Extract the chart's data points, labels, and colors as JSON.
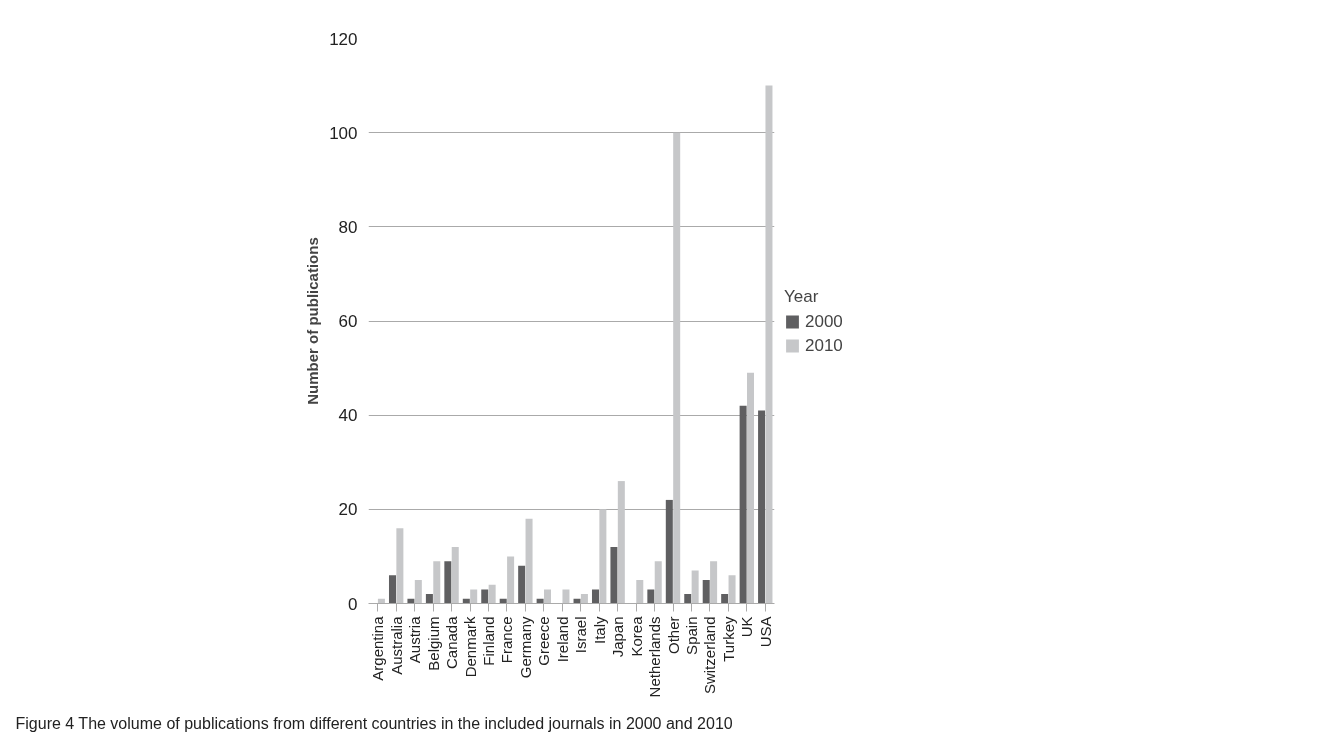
{
  "chart_data": {
    "type": "bar",
    "ylabel": "Number of publications",
    "legend_title": "Year",
    "categories": [
      "Argentina",
      "Australia",
      "Austria",
      "Belgium",
      "Canada",
      "Denmark",
      "Finland",
      "France",
      "Germany",
      "Greece",
      "Ireland",
      "Israel",
      "Italy",
      "Japan",
      "Korea",
      "Netherlands",
      "Other",
      "Spain",
      "Switzerland",
      "Turkey",
      "UK",
      "USA"
    ],
    "series": [
      {
        "name": "2000",
        "color": "#5f5f61",
        "values": [
          0,
          6,
          1,
          2,
          9,
          1,
          3,
          1,
          8,
          1,
          0,
          1,
          3,
          12,
          0,
          3,
          22,
          2,
          5,
          2,
          42,
          41
        ]
      },
      {
        "name": "2010",
        "color": "#c6c7c9",
        "values": [
          1,
          16,
          5,
          9,
          12,
          3,
          4,
          10,
          18,
          3,
          3,
          2,
          20,
          26,
          5,
          9,
          100,
          7,
          9,
          6,
          49,
          110
        ]
      }
    ],
    "ylim": [
      0,
      120
    ],
    "yticks": [
      0,
      20,
      40,
      60,
      80,
      100,
      120
    ],
    "grid": "y",
    "legend": "right",
    "annotations": [
      "Figure 4   The volume of publications from different countries in the included journals in 2000 and 2010"
    ]
  }
}
